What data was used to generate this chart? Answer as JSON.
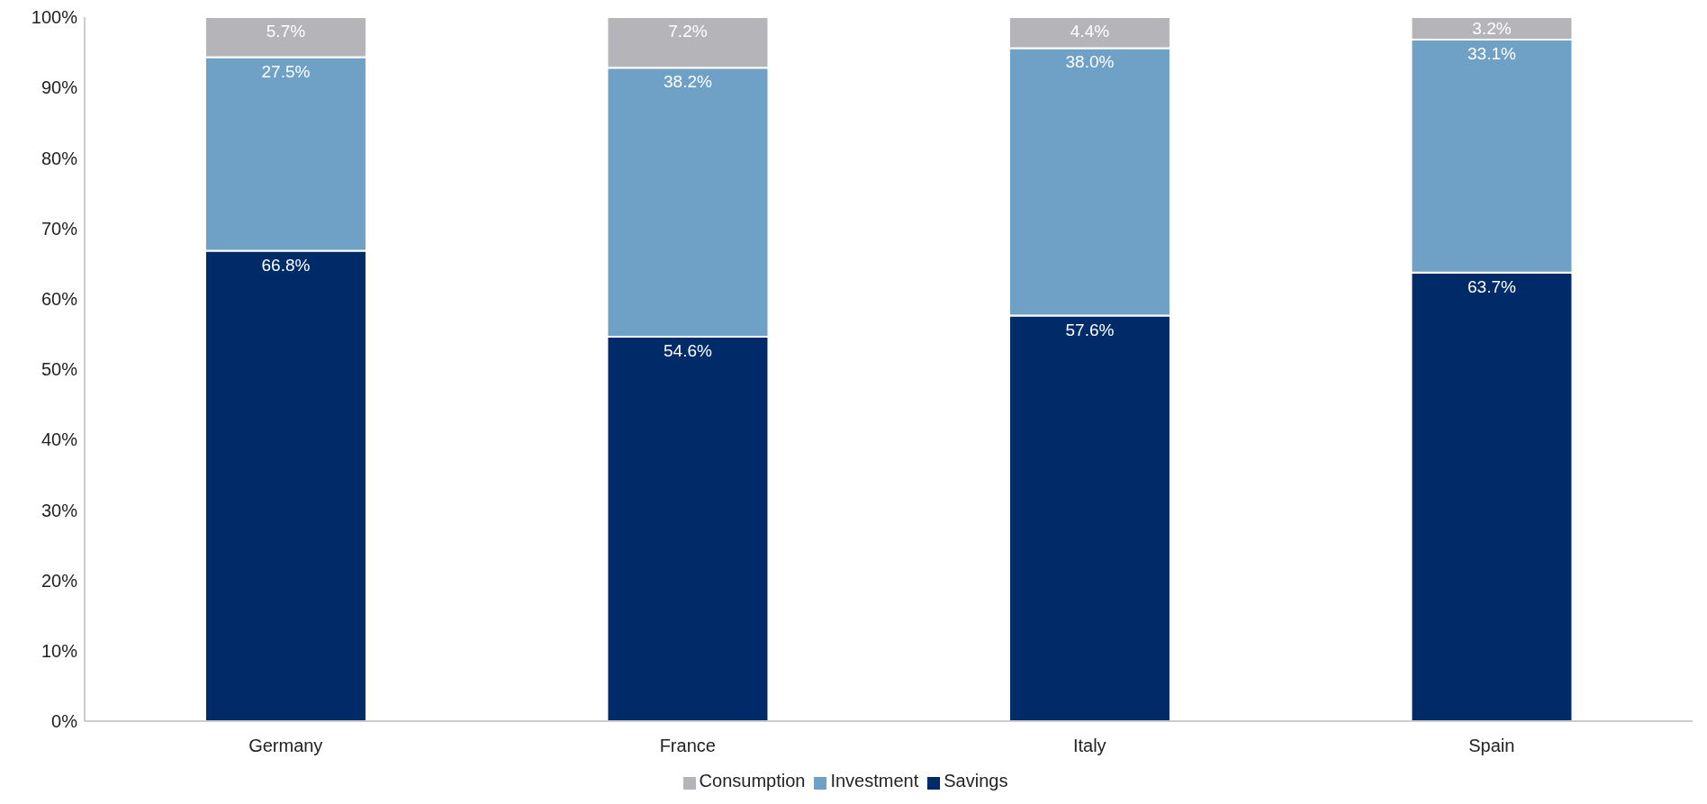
{
  "chart_data": {
    "type": "bar",
    "stacked": true,
    "categories": [
      "Germany",
      "France",
      "Italy",
      "Spain"
    ],
    "series": [
      {
        "name": "Savings",
        "color": "#002b69",
        "values": [
          66.8,
          54.6,
          57.6,
          63.7
        ],
        "value_labels": [
          "66.8%",
          "54.6%",
          "57.6%",
          "63.7%"
        ]
      },
      {
        "name": "Investment",
        "color": "#6fa1c6",
        "values": [
          27.5,
          38.2,
          38.0,
          33.1
        ],
        "value_labels": [
          "27.5%",
          "38.2%",
          "38.0%",
          "33.1%"
        ]
      },
      {
        "name": "Consumption",
        "color": "#b4b4b9",
        "values": [
          5.7,
          7.2,
          4.4,
          3.2
        ],
        "value_labels": [
          "5.7%",
          "7.2%",
          "4.4%",
          "3.2%"
        ]
      }
    ],
    "ylim": [
      0,
      100
    ],
    "yticks": [
      {
        "value": 0,
        "label": "0%"
      },
      {
        "value": 10,
        "label": "10%"
      },
      {
        "value": 20,
        "label": "20%"
      },
      {
        "value": 30,
        "label": "30%"
      },
      {
        "value": 40,
        "label": "40%"
      },
      {
        "value": 50,
        "label": "50%"
      },
      {
        "value": 60,
        "label": "60%"
      },
      {
        "value": 70,
        "label": "70%"
      },
      {
        "value": 80,
        "label": "80%"
      },
      {
        "value": 90,
        "label": "90%"
      },
      {
        "value": 100,
        "label": "100%"
      }
    ],
    "grid": false,
    "legend": "bottom"
  }
}
